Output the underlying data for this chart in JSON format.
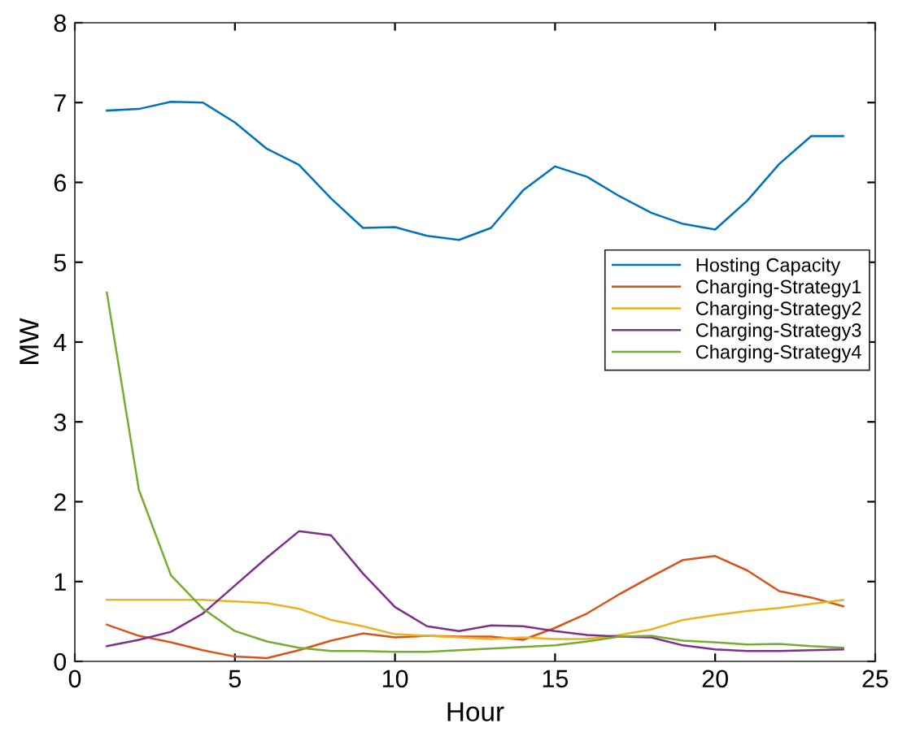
{
  "chart_data": {
    "type": "line",
    "xlabel": "Hour",
    "ylabel": "MW",
    "x": [
      1,
      2,
      3,
      4,
      5,
      6,
      7,
      8,
      9,
      10,
      11,
      12,
      13,
      14,
      15,
      16,
      17,
      18,
      19,
      20,
      21,
      22,
      23,
      24
    ],
    "xlim": [
      0,
      25
    ],
    "xticks": [
      0,
      5,
      10,
      15,
      20,
      25
    ],
    "ylim": [
      0,
      8
    ],
    "yticks": [
      0,
      1,
      2,
      3,
      4,
      5,
      6,
      7,
      8
    ],
    "grid": false,
    "legend": "right",
    "marker": "none",
    "line_style": "solid",
    "series": [
      {
        "name": "Hosting Capacity",
        "color": "#0072bd",
        "values": [
          6.9,
          6.92,
          7.01,
          7.0,
          6.75,
          6.42,
          6.22,
          5.8,
          5.43,
          5.44,
          5.33,
          5.28,
          5.43,
          5.9,
          6.2,
          6.07,
          5.83,
          5.62,
          5.48,
          5.41,
          5.77,
          6.23,
          6.58,
          6.58
        ]
      },
      {
        "name": "Charging-Strategy1",
        "color": "#d95319",
        "values": [
          0.46,
          0.32,
          0.24,
          0.14,
          0.06,
          0.04,
          0.14,
          0.26,
          0.35,
          0.3,
          0.32,
          0.31,
          0.31,
          0.27,
          0.42,
          0.6,
          0.84,
          1.06,
          1.27,
          1.32,
          1.14,
          0.88,
          0.8,
          0.69
        ]
      },
      {
        "name": "Charging-Strategy2",
        "color": "#edb120",
        "values": [
          0.77,
          0.77,
          0.77,
          0.77,
          0.75,
          0.73,
          0.66,
          0.52,
          0.44,
          0.34,
          0.32,
          0.3,
          0.28,
          0.3,
          0.28,
          0.28,
          0.33,
          0.4,
          0.52,
          0.58,
          0.63,
          0.67,
          0.72,
          0.77
        ]
      },
      {
        "name": "Charging-Strategy3",
        "color": "#7e2f8e",
        "values": [
          0.19,
          0.27,
          0.37,
          0.6,
          0.95,
          1.3,
          1.63,
          1.58,
          1.1,
          0.68,
          0.44,
          0.38,
          0.45,
          0.44,
          0.38,
          0.33,
          0.31,
          0.3,
          0.2,
          0.15,
          0.13,
          0.13,
          0.14,
          0.15
        ]
      },
      {
        "name": "Charging-Strategy4",
        "color": "#77ac30",
        "values": [
          4.62,
          2.15,
          1.08,
          0.66,
          0.38,
          0.25,
          0.17,
          0.13,
          0.13,
          0.12,
          0.12,
          0.14,
          0.16,
          0.18,
          0.2,
          0.25,
          0.31,
          0.32,
          0.26,
          0.24,
          0.21,
          0.22,
          0.19,
          0.17
        ]
      }
    ]
  }
}
